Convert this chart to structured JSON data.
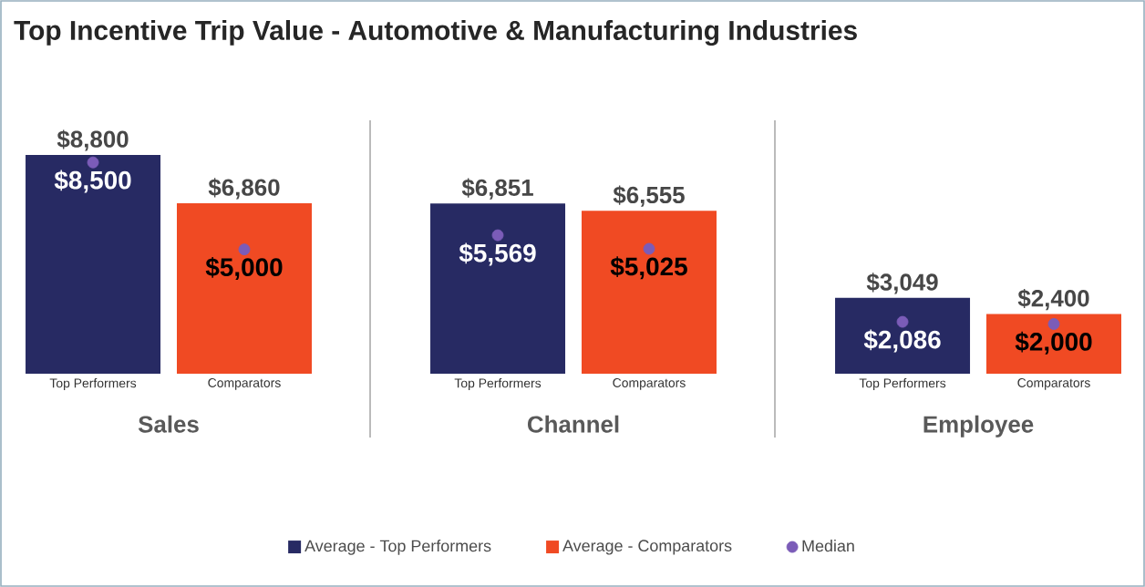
{
  "chart_data": [
    {
      "type": "bar",
      "title": "Top Incentive Trip Value - Automotive & Manufacturing Industries",
      "xlabel": "Sales",
      "categories": [
        "Top Performers",
        "Comparators"
      ],
      "tick_labels": "x",
      "series": [
        {
          "color": "#272a63",
          "values": [
            8800,
            null
          ],
          "value_labels": [
            "$8,800",
            null
          ]
        },
        {
          "color": "#f04a23",
          "values": [
            null,
            6860
          ],
          "value_labels": [
            null,
            "$6,860"
          ]
        },
        {
          "type": "scatter",
          "color": "#7b5cb8",
          "x": [
            "Top Performers",
            "Comparators"
          ],
          "values": [
            8500,
            5000
          ],
          "value_labels": [
            "$8,500",
            "$5,000"
          ]
        }
      ]
    },
    {
      "type": "bar",
      "xlabel": "Channel",
      "categories": [
        "Top Performers",
        "Comparators"
      ],
      "tick_labels": "x",
      "legend": "bottom",
      "series": [
        {
          "name": "Average - Top Performers",
          "color": "#272a63",
          "values": [
            6851,
            null
          ],
          "value_labels": [
            "$6,851",
            null
          ]
        },
        {
          "name": "Average - Comparators",
          "color": "#f04a23",
          "values": [
            null,
            6555
          ],
          "value_labels": [
            null,
            "$6,555"
          ]
        },
        {
          "type": "scatter",
          "name": "Median",
          "color": "#7b5cb8",
          "x": [
            "Top Performers",
            "Comparators"
          ],
          "values": [
            5569,
            5025
          ],
          "value_labels": [
            "$5,569",
            "$5,025"
          ]
        }
      ]
    },
    {
      "type": "bar",
      "xlabel": "Employee",
      "categories": [
        "Top Performers",
        "Comparators"
      ],
      "tick_labels": "x",
      "series": [
        {
          "color": "#272a63",
          "values": [
            3049,
            null
          ],
          "value_labels": [
            "$3,049",
            null
          ]
        },
        {
          "color": "#f04a23",
          "values": [
            null,
            2400
          ],
          "value_labels": [
            null,
            "$2,400"
          ]
        },
        {
          "type": "scatter",
          "color": "#7b5cb8",
          "x": [
            "Top Performers",
            "Comparators"
          ],
          "values": [
            2086,
            2000
          ],
          "value_labels": [
            "$2,086",
            "$2,000"
          ]
        }
      ]
    }
  ]
}
